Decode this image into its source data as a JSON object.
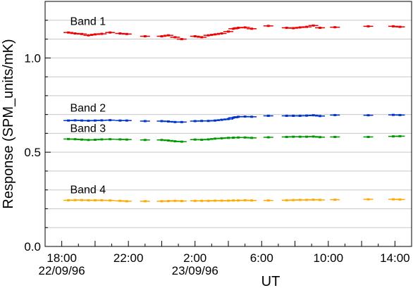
{
  "chart_data": {
    "type": "scatter",
    "title": "",
    "xlabel": "UT",
    "ylabel": "Response (SPM_units/mK)",
    "xlim": [
      17.0,
      39.0
    ],
    "ylim": [
      0.0,
      1.3
    ],
    "grid": true,
    "legend": "none",
    "x_ticks": [
      {
        "value": 18,
        "label": "18:00",
        "sublabel": "22/09/96"
      },
      {
        "value": 22,
        "label": "22:00",
        "sublabel": ""
      },
      {
        "value": 26,
        "label": "2:00",
        "sublabel": "23/09/96"
      },
      {
        "value": 30,
        "label": "6:00",
        "sublabel": ""
      },
      {
        "value": 34,
        "label": "10:00",
        "sublabel": ""
      },
      {
        "value": 38,
        "label": "14:00",
        "sublabel": ""
      }
    ],
    "y_ticks": [
      {
        "value": 0.0,
        "label": "0.0"
      },
      {
        "value": 0.5,
        "label": "0.5"
      },
      {
        "value": 1.0,
        "label": "1.0"
      }
    ],
    "series": [
      {
        "name": "Band 1",
        "color": "#ee0000",
        "label_at": [
          18.5,
          1.175
        ],
        "x": [
          18.4,
          18.8,
          19.2,
          19.6,
          20.0,
          20.4,
          20.9,
          21.5,
          21.9,
          23.0,
          24.0,
          24.4,
          24.8,
          25.2,
          26.0,
          26.4,
          26.8,
          27.2,
          27.6,
          28.0,
          28.3,
          28.6,
          29.0,
          29.4,
          30.4,
          31.5,
          31.9,
          32.3,
          32.7,
          33.1,
          33.5,
          34.4,
          36.4,
          37.9,
          38.3
        ],
        "y": [
          1.135,
          1.13,
          1.127,
          1.12,
          1.125,
          1.128,
          1.135,
          1.13,
          1.127,
          1.115,
          1.115,
          1.12,
          1.11,
          1.1,
          1.115,
          1.11,
          1.12,
          1.125,
          1.13,
          1.14,
          1.155,
          1.16,
          1.162,
          1.155,
          1.17,
          1.16,
          1.158,
          1.162,
          1.165,
          1.172,
          1.16,
          1.163,
          1.168,
          1.168,
          1.165
        ]
      },
      {
        "name": "Band 2",
        "color": "#0033cc",
        "label_at": [
          18.5,
          0.715
        ],
        "x": [
          18.4,
          18.8,
          19.2,
          19.6,
          20.0,
          20.4,
          20.9,
          21.5,
          21.9,
          23.0,
          24.0,
          24.4,
          24.8,
          25.2,
          26.0,
          26.4,
          26.8,
          27.2,
          27.6,
          28.0,
          28.3,
          28.6,
          29.0,
          29.4,
          30.4,
          31.5,
          31.9,
          32.3,
          32.7,
          33.1,
          33.5,
          34.4,
          36.4,
          37.9,
          38.3
        ],
        "y": [
          0.668,
          0.669,
          0.668,
          0.667,
          0.668,
          0.669,
          0.67,
          0.668,
          0.668,
          0.665,
          0.665,
          0.663,
          0.66,
          0.66,
          0.665,
          0.666,
          0.666,
          0.668,
          0.672,
          0.676,
          0.683,
          0.688,
          0.689,
          0.688,
          0.693,
          0.693,
          0.693,
          0.693,
          0.694,
          0.696,
          0.692,
          0.697,
          0.696,
          0.698,
          0.697
        ]
      },
      {
        "name": "Band 3",
        "color": "#009900",
        "label_at": [
          18.5,
          0.607
        ],
        "x": [
          18.4,
          18.8,
          19.2,
          19.6,
          20.0,
          20.4,
          20.9,
          21.5,
          21.9,
          23.0,
          24.0,
          24.4,
          24.8,
          25.2,
          26.0,
          26.4,
          26.8,
          27.2,
          27.6,
          28.0,
          28.3,
          28.6,
          29.0,
          29.4,
          30.4,
          31.5,
          31.9,
          32.3,
          32.7,
          33.1,
          33.5,
          34.4,
          36.4,
          37.9,
          38.3
        ],
        "y": [
          0.57,
          0.569,
          0.567,
          0.565,
          0.566,
          0.568,
          0.569,
          0.568,
          0.567,
          0.565,
          0.565,
          0.562,
          0.558,
          0.556,
          0.567,
          0.566,
          0.568,
          0.572,
          0.574,
          0.576,
          0.577,
          0.578,
          0.578,
          0.576,
          0.579,
          0.581,
          0.582,
          0.582,
          0.582,
          0.583,
          0.58,
          0.581,
          0.581,
          0.584,
          0.585
        ]
      },
      {
        "name": "Band 4",
        "color": "#ffaa00",
        "label_at": [
          18.5,
          0.282
        ],
        "x": [
          18.4,
          18.8,
          19.2,
          19.6,
          20.0,
          20.4,
          20.9,
          21.5,
          21.9,
          23.0,
          24.0,
          24.4,
          24.8,
          25.2,
          26.0,
          26.4,
          26.8,
          27.2,
          27.6,
          28.0,
          28.3,
          28.6,
          29.0,
          29.4,
          30.4,
          31.5,
          31.9,
          32.3,
          32.7,
          33.1,
          33.5,
          34.4,
          36.4,
          37.9,
          38.3
        ],
        "y": [
          0.245,
          0.246,
          0.246,
          0.245,
          0.245,
          0.245,
          0.244,
          0.242,
          0.24,
          0.24,
          0.24,
          0.241,
          0.242,
          0.241,
          0.242,
          0.242,
          0.242,
          0.243,
          0.243,
          0.243,
          0.244,
          0.244,
          0.245,
          0.244,
          0.244,
          0.245,
          0.246,
          0.247,
          0.247,
          0.248,
          0.247,
          0.248,
          0.25,
          0.25,
          0.249
        ]
      }
    ]
  }
}
